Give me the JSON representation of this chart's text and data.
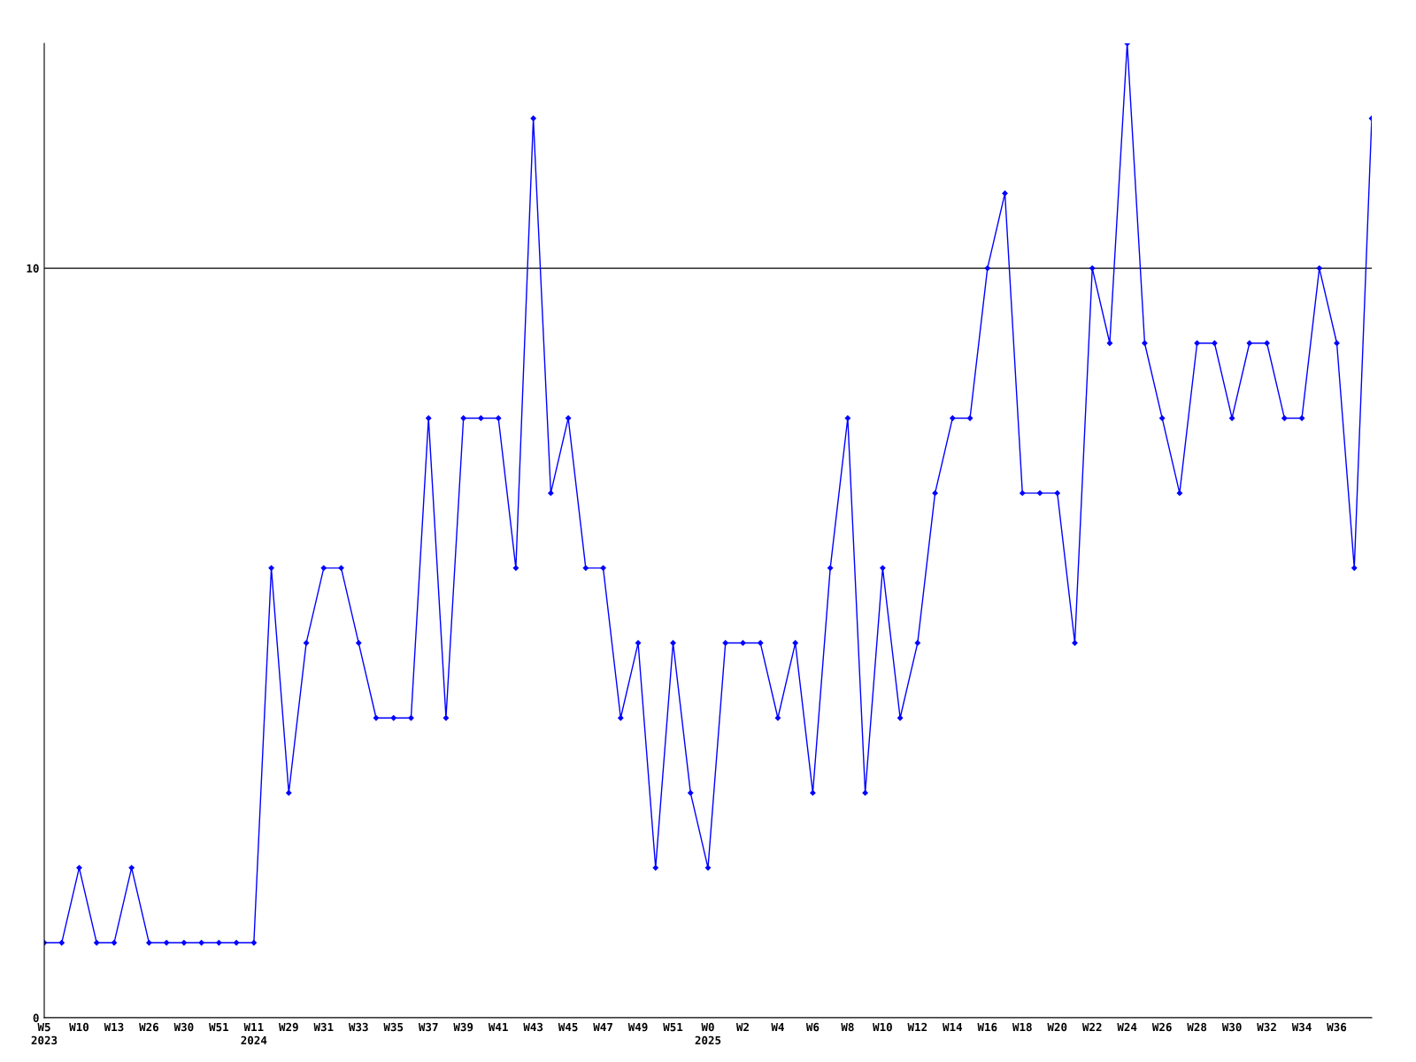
{
  "chart_data": {
    "type": "line",
    "categories": [
      "W5\n2023",
      null,
      "W10",
      null,
      "W13",
      null,
      "W26",
      null,
      "W30",
      null,
      "W51",
      null,
      "W11\n2024",
      null,
      "W29",
      null,
      "W31",
      null,
      "W33",
      null,
      "W35",
      null,
      "W37",
      null,
      "W39",
      null,
      "W41",
      null,
      "W43",
      null,
      "W45",
      null,
      "W47",
      null,
      "W49",
      null,
      "W51",
      null,
      "W0\n2025",
      null,
      "W2",
      null,
      "W4",
      null,
      "W6",
      null,
      "W8",
      null,
      "W10",
      null,
      "W12",
      null,
      "W14",
      null,
      "W16",
      null,
      "W18",
      null,
      "W20",
      null,
      "W22",
      null,
      "W24",
      null,
      "W26",
      null,
      "W28",
      null,
      "W30",
      null,
      "W32",
      null,
      "W34",
      null,
      "W36",
      null,
      null
    ],
    "series": [
      {
        "color": "#0000ff",
        "values": [
          1,
          1,
          2,
          1,
          1,
          2,
          1,
          1,
          1,
          1,
          1,
          1,
          1,
          6,
          3,
          5,
          6,
          6,
          5,
          4,
          4,
          4,
          8,
          4,
          8,
          8,
          8,
          6,
          12,
          7,
          8,
          6,
          6,
          4,
          5,
          2,
          5,
          3,
          2,
          5,
          5,
          5,
          4,
          5,
          3,
          6,
          8,
          3,
          6,
          4,
          5,
          7,
          8,
          8,
          10,
          11,
          7,
          7,
          7,
          5,
          10,
          9,
          13,
          9,
          8,
          7,
          9,
          9,
          8,
          9,
          9,
          8,
          8,
          10,
          9,
          6,
          12
        ]
      }
    ],
    "ylim": [
      0,
      13
    ],
    "yticks": [
      0,
      10
    ],
    "grid": "y",
    "marker": "diamond",
    "line_style": "solid"
  }
}
